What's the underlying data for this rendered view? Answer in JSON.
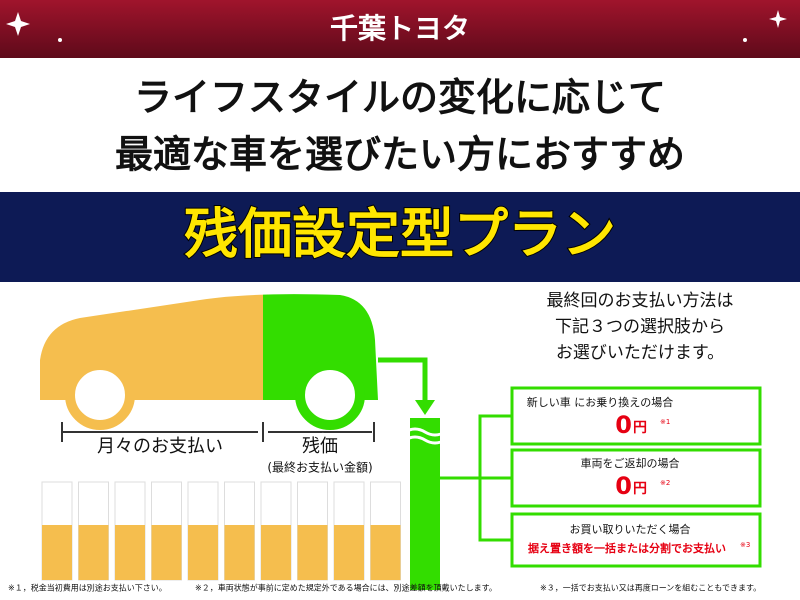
{
  "header": {
    "brand": "千葉トヨタ"
  },
  "headline": [
    "ライフスタイルの変化に応じて",
    "最適な車を選びたい方におすすめ"
  ],
  "banner": "残価設定型プラン",
  "diagram": {
    "monthly": "月々のお支払い",
    "residual": "残価",
    "residual_note": "(最終お支払い金額)"
  },
  "intro": [
    "最終回のお支払い方法は",
    "下記３つの選択肢から",
    "お選びいただけます。"
  ],
  "options": [
    {
      "label": "新しい車 にお乗り換えの場合",
      "amount": "0",
      "unit": "円",
      "note": "※1"
    },
    {
      "label": "車両をご返却の場合",
      "amount": "0",
      "unit": "円",
      "note": "※2"
    },
    {
      "label": "お買い取りいただく場合",
      "detail": "据え置き額を一括または分割でお支払い",
      "note": "※3"
    }
  ],
  "footnotes": [
    "※１，税金当初費用は別途お支払い下さい。",
    "※２，車両状態が事前に定めた規定外である場合には、別途差額を頂戴いたします。",
    "※３，一括でお支払い又は再度ローンを組むこともできます。"
  ]
}
